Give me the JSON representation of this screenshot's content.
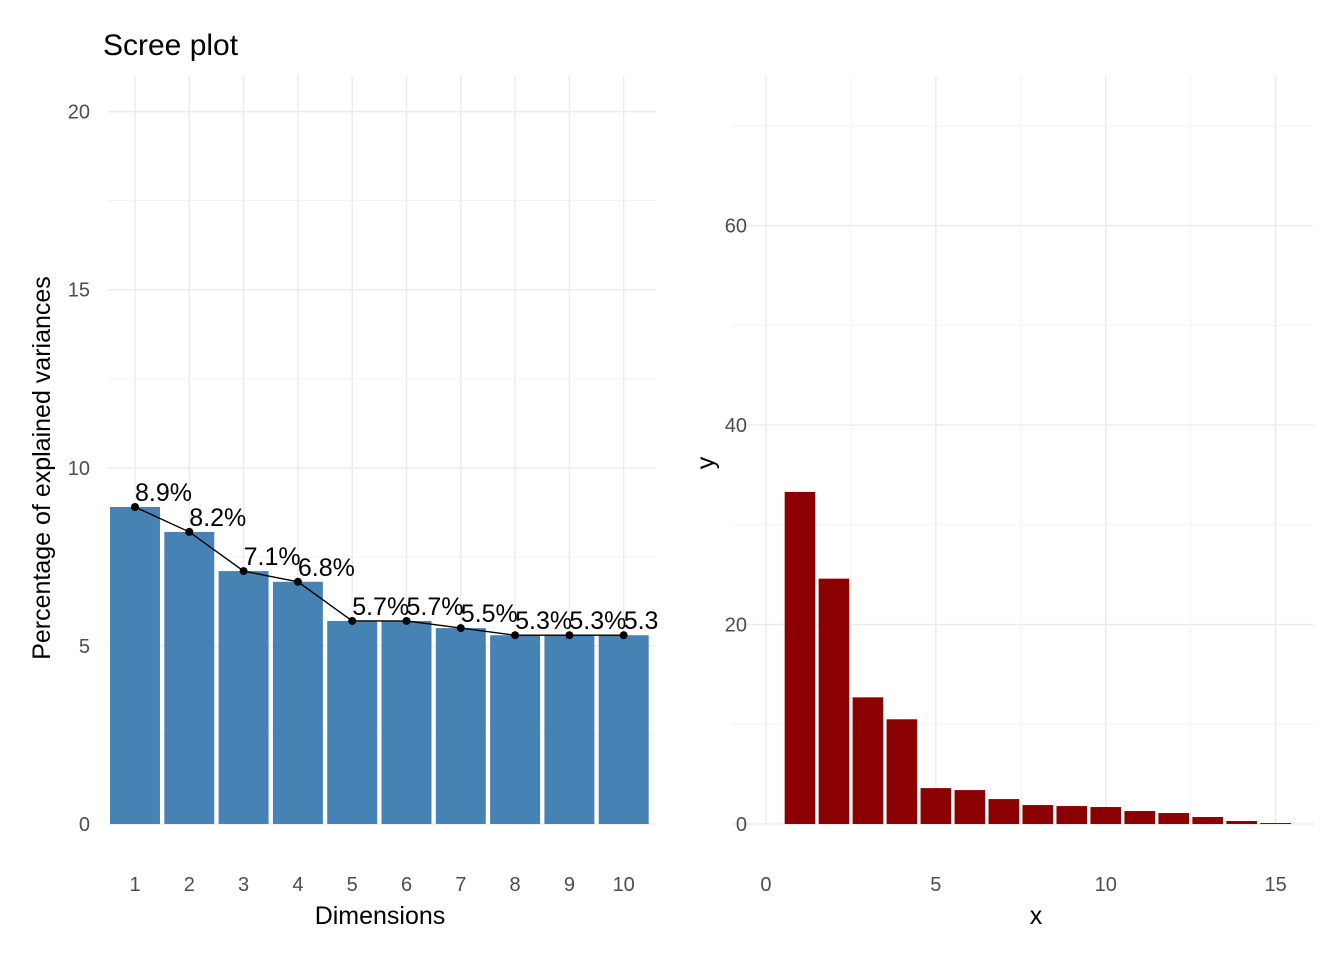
{
  "colors": {
    "left_bar": "#4682b4",
    "right_bar": "#8b0000",
    "line": "#000000"
  },
  "chart_data": [
    {
      "type": "bar",
      "title": "Scree plot",
      "xlabel": "Dimensions",
      "ylabel": "Percentage of explained variances",
      "categories": [
        "1",
        "2",
        "3",
        "4",
        "5",
        "6",
        "7",
        "8",
        "9",
        "10"
      ],
      "values": [
        8.9,
        8.2,
        7.1,
        6.8,
        5.7,
        5.7,
        5.5,
        5.3,
        5.3,
        5.3
      ],
      "data_labels": [
        "8.9%",
        "8.2%",
        "7.1%",
        "6.8%",
        "5.7%",
        "5.7%",
        "5.5%",
        "5.3%",
        "5.3%",
        "5.3"
      ],
      "overlay": "line-with-points",
      "ylim": [
        0,
        21
      ],
      "yticks": [
        0,
        5,
        10,
        15,
        20
      ],
      "grid": true
    },
    {
      "type": "bar",
      "title": "",
      "xlabel": "x",
      "ylabel": "y",
      "x": [
        1,
        2,
        3,
        4,
        5,
        6,
        7,
        8,
        9,
        10,
        11,
        12,
        13,
        14,
        15
      ],
      "values": [
        33.3,
        24.6,
        12.7,
        10.5,
        3.6,
        3.4,
        2.5,
        1.9,
        1.8,
        1.7,
        1.3,
        1.1,
        0.7,
        0.3,
        0.1
      ],
      "xlim": [
        0,
        16
      ],
      "ylim": [
        0,
        75
      ],
      "xticks": [
        0,
        5,
        10,
        15
      ],
      "yticks": [
        0,
        20,
        40,
        60
      ],
      "grid": true
    }
  ]
}
